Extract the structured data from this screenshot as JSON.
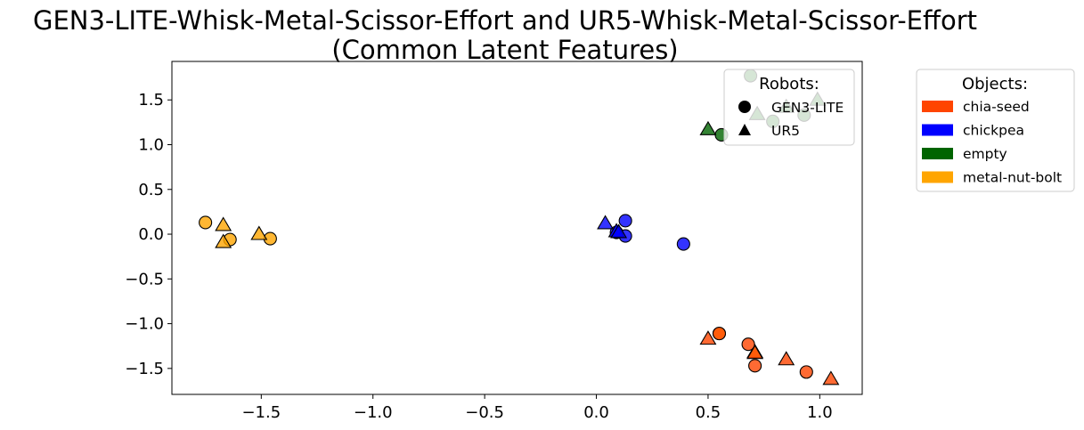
{
  "chart_data": {
    "type": "scatter",
    "title_line1": "GEN3-LITE-Whisk-Metal-Scissor-Effort and UR5-Whisk-Metal-Scissor-Effort",
    "title_line2": "(Common Latent Features)",
    "xlabel": "",
    "ylabel": "",
    "xlim": [
      -1.9,
      1.19
    ],
    "ylim": [
      -1.79,
      1.93
    ],
    "xticks": [
      -1.5,
      -1.0,
      -0.5,
      0.0,
      0.5,
      1.0
    ],
    "xtick_labels": [
      "−1.5",
      "−1.0",
      "−0.5",
      "0.0",
      "0.5",
      "1.0"
    ],
    "yticks": [
      -1.5,
      -1.0,
      -0.5,
      0.0,
      0.5,
      1.0,
      1.5
    ],
    "ytick_labels": [
      "−1.5",
      "−1.0",
      "−0.5",
      "0.0",
      "0.5",
      "1.0",
      "1.5"
    ],
    "grid": false,
    "robots_legend": {
      "title": "Robots:",
      "placement": "top-right inside axes",
      "entries": [
        {
          "label": "GEN3-LITE",
          "marker": "circle"
        },
        {
          "label": "UR5",
          "marker": "triangle"
        }
      ]
    },
    "objects_legend": {
      "title": "Objects:",
      "placement": "outside right",
      "entries": [
        {
          "label": "chia-seed",
          "color": "#FF4500"
        },
        {
          "label": "chickpea",
          "color": "#0000FF"
        },
        {
          "label": "empty",
          "color": "#006400"
        },
        {
          "label": "metal-nut-bolt",
          "color": "#FFA500"
        }
      ]
    },
    "series": [
      {
        "object": "metal-nut-bolt",
        "robot": "GEN3-LITE",
        "color": "#FFA500",
        "points": [
          [
            -1.75,
            0.13
          ],
          [
            -1.64,
            -0.06
          ],
          [
            -1.46,
            -0.05
          ],
          [
            0.55,
            -1.11
          ]
        ]
      },
      {
        "object": "metal-nut-bolt",
        "robot": "UR5",
        "color": "#FFA500",
        "points": [
          [
            -1.67,
            0.1
          ],
          [
            -1.67,
            -0.09
          ],
          [
            -1.51,
            0.0
          ],
          [
            0.71,
            -1.32
          ]
        ]
      },
      {
        "object": "chickpea",
        "robot": "GEN3-LITE",
        "color": "#0000FF",
        "points": [
          [
            0.13,
            0.15
          ],
          [
            0.13,
            -0.02
          ],
          [
            0.09,
            0.02
          ],
          [
            0.39,
            -0.11
          ]
        ]
      },
      {
        "object": "chickpea",
        "robot": "UR5",
        "color": "#0000FF",
        "points": [
          [
            0.04,
            0.12
          ],
          [
            0.09,
            0.03
          ],
          [
            0.1,
            0.02
          ]
        ]
      },
      {
        "object": "empty",
        "robot": "GEN3-LITE",
        "color": "#006400",
        "points": [
          [
            0.56,
            1.11
          ],
          [
            0.69,
            1.77
          ],
          [
            0.79,
            1.26
          ],
          [
            0.93,
            1.33
          ]
        ]
      },
      {
        "object": "empty",
        "robot": "UR5",
        "color": "#006400",
        "points": [
          [
            0.5,
            1.17
          ],
          [
            0.72,
            1.34
          ],
          [
            0.85,
            1.42
          ],
          [
            0.99,
            1.5
          ]
        ]
      },
      {
        "object": "chia-seed",
        "robot": "GEN3-LITE",
        "color": "#FF4500",
        "points": [
          [
            0.68,
            -1.23
          ],
          [
            0.71,
            -1.47
          ],
          [
            0.94,
            -1.54
          ],
          [
            0.55,
            -1.11
          ]
        ]
      },
      {
        "object": "chia-seed",
        "robot": "UR5",
        "color": "#FF4500",
        "points": [
          [
            0.5,
            -1.17
          ],
          [
            0.85,
            -1.4
          ],
          [
            1.05,
            -1.62
          ],
          [
            0.71,
            -1.33
          ]
        ]
      }
    ]
  }
}
